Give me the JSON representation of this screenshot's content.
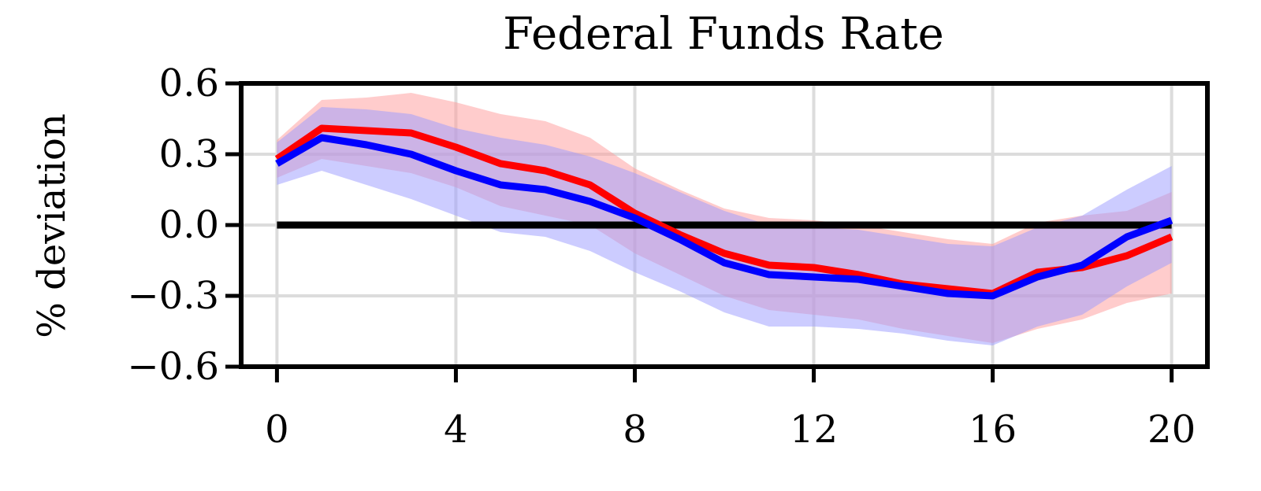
{
  "chart_data": {
    "type": "line",
    "title": "Federal Funds Rate",
    "xlabel": "",
    "ylabel": "% deviation",
    "xlim": [
      -0.8,
      20.8
    ],
    "ylim": [
      -0.6,
      0.6
    ],
    "x_ticks": [
      0,
      4,
      8,
      12,
      16,
      20
    ],
    "x_tick_labels": [
      "0",
      "4",
      "8",
      "12",
      "16",
      "20"
    ],
    "y_ticks": [
      0.6,
      0.3,
      0.0,
      -0.3,
      -0.6
    ],
    "y_tick_labels": [
      "0.6",
      "0.3",
      "0.0",
      "−0.3",
      "−0.6"
    ],
    "grid": true,
    "reference_line": {
      "y": 0.0,
      "x_range": [
        0,
        20
      ],
      "color": "#000000"
    },
    "x": [
      0,
      1,
      2,
      3,
      4,
      5,
      6,
      7,
      8,
      9,
      10,
      11,
      12,
      13,
      14,
      15,
      16,
      17,
      18,
      19,
      20
    ],
    "series": [
      {
        "color": "#ff0000",
        "band_color": "#ff9a9a",
        "values": [
          0.28,
          0.41,
          0.4,
          0.39,
          0.33,
          0.26,
          0.23,
          0.17,
          0.05,
          -0.04,
          -0.12,
          -0.17,
          -0.18,
          -0.21,
          -0.25,
          -0.27,
          -0.29,
          -0.2,
          -0.18,
          -0.13,
          -0.05
        ],
        "lower": [
          0.2,
          0.28,
          0.25,
          0.22,
          0.16,
          0.08,
          0.04,
          0.0,
          -0.12,
          -0.21,
          -0.3,
          -0.36,
          -0.38,
          -0.4,
          -0.44,
          -0.47,
          -0.5,
          -0.44,
          -0.4,
          -0.33,
          -0.29
        ],
        "upper": [
          0.36,
          0.53,
          0.54,
          0.56,
          0.52,
          0.47,
          0.44,
          0.37,
          0.24,
          0.15,
          0.07,
          0.03,
          0.02,
          0.0,
          -0.03,
          -0.06,
          -0.08,
          0.01,
          0.04,
          0.06,
          0.14
        ]
      },
      {
        "color": "#0000ff",
        "band_color": "#9a9aff",
        "values": [
          0.26,
          0.37,
          0.34,
          0.3,
          0.23,
          0.17,
          0.15,
          0.1,
          0.03,
          -0.06,
          -0.16,
          -0.21,
          -0.22,
          -0.23,
          -0.26,
          -0.29,
          -0.3,
          -0.22,
          -0.17,
          -0.05,
          0.02
        ],
        "lower": [
          0.17,
          0.23,
          0.17,
          0.11,
          0.04,
          -0.03,
          -0.05,
          -0.11,
          -0.2,
          -0.28,
          -0.37,
          -0.43,
          -0.43,
          -0.44,
          -0.46,
          -0.49,
          -0.51,
          -0.43,
          -0.38,
          -0.26,
          -0.16
        ],
        "upper": [
          0.35,
          0.5,
          0.49,
          0.47,
          0.41,
          0.37,
          0.34,
          0.29,
          0.22,
          0.14,
          0.06,
          0.0,
          -0.01,
          -0.02,
          -0.05,
          -0.08,
          -0.09,
          -0.01,
          0.04,
          0.15,
          0.25
        ]
      }
    ]
  }
}
